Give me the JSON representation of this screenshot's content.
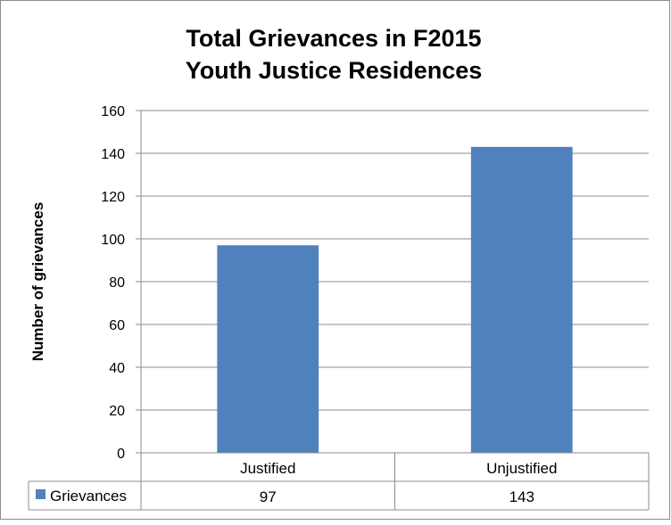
{
  "chart_data": {
    "type": "bar",
    "title_lines": [
      "Total Grievances in F2015",
      "Youth Justice Residences"
    ],
    "xlabel": "",
    "ylabel": "Number of grievances",
    "categories": [
      "Justified",
      "Unjustified"
    ],
    "series": [
      {
        "name": "Grievances",
        "values": [
          97,
          143
        ],
        "color": "#4f81bd"
      }
    ],
    "ylim": [
      0,
      160
    ],
    "yticks": [
      "0",
      "20",
      "40",
      "60",
      "80",
      "100",
      "120",
      "140",
      "160"
    ],
    "grid": true,
    "data_table": true,
    "data_table_values": [
      "97",
      "143"
    ],
    "legend_placement": "data-table"
  }
}
